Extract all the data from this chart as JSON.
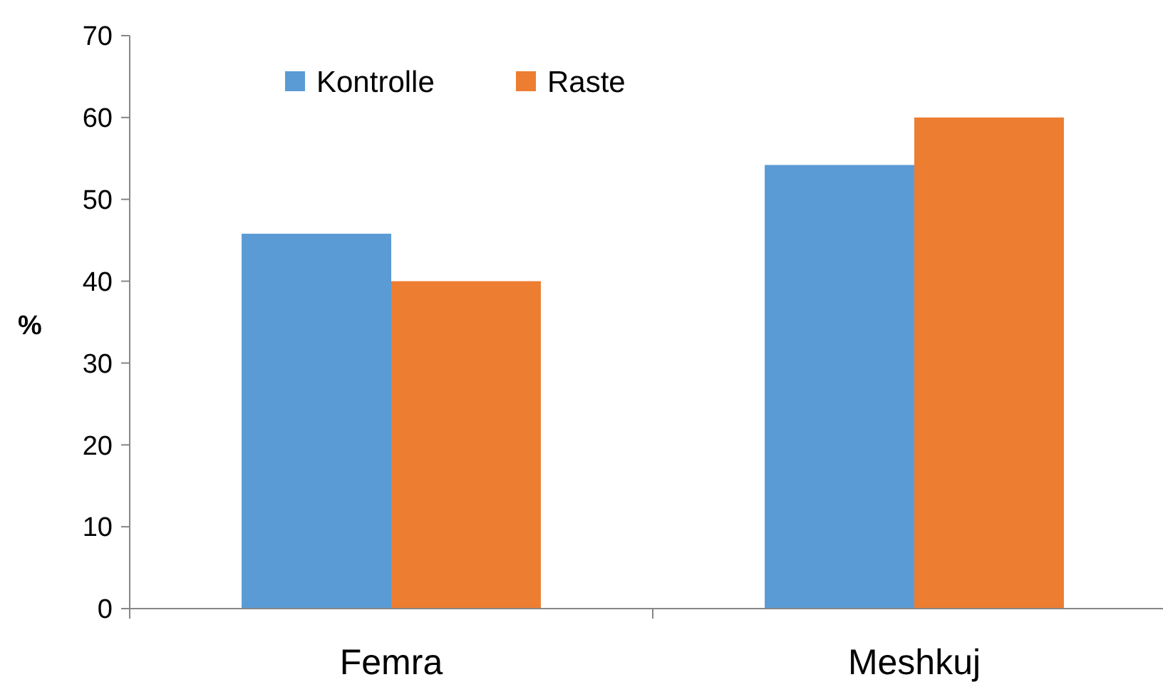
{
  "chart_data": {
    "type": "bar",
    "ylabel": "%",
    "categories": [
      "Femra",
      "Meshkuj"
    ],
    "series": [
      {
        "name": "Kontrolle",
        "color": "#5b9bd5",
        "values": [
          45.8,
          54.2
        ]
      },
      {
        "name": "Raste",
        "color": "#ed7d31",
        "values": [
          40,
          60
        ]
      }
    ],
    "ylim": [
      0,
      70
    ],
    "yticks": [
      0,
      10,
      20,
      30,
      40,
      50,
      60,
      70
    ],
    "grid": false,
    "legend": "top"
  }
}
